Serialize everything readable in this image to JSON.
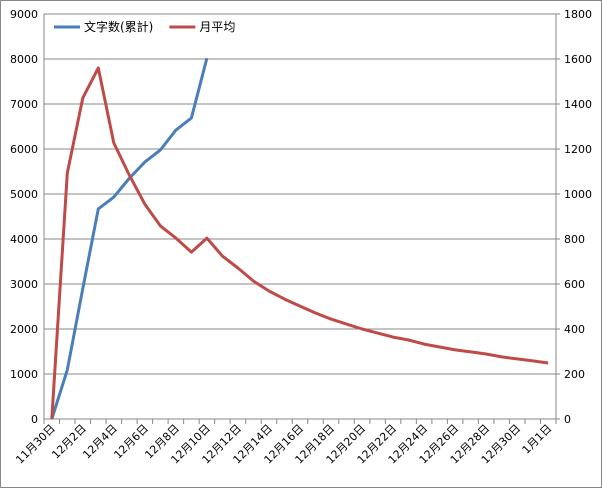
{
  "chart_data": {
    "type": "line",
    "categories": [
      "11月30日",
      null,
      "12月2日",
      null,
      "12月4日",
      null,
      "12月6日",
      null,
      "12月8日",
      null,
      "12月10日",
      null,
      "12月12日",
      null,
      "12月14日",
      null,
      "12月16日",
      null,
      "12月18日",
      null,
      "12月20日",
      null,
      "12月22日",
      null,
      "12月24日",
      null,
      "12月26日",
      null,
      "12月28日",
      null,
      "12月30日",
      null,
      "1月1日"
    ],
    "series": [
      {
        "name": "文字数(累計)",
        "color": "#4a7ebb",
        "axis": "y",
        "values": [
          0,
          1090,
          2900,
          4670,
          4930,
          5350,
          5710,
          5980,
          6420,
          6690,
          8020,
          null,
          null,
          null,
          null,
          null,
          null,
          null,
          null,
          null,
          null,
          null,
          null,
          null,
          null,
          null,
          null,
          null,
          null,
          null,
          null,
          null,
          null
        ]
      },
      {
        "name": "月平均",
        "color": "#be4b48",
        "axis": "y2",
        "values": [
          0,
          1093,
          1427,
          1560,
          1227,
          1084,
          955,
          858,
          804,
          742,
          804,
          724,
          671,
          613,
          569,
          533,
          502,
          471,
          444,
          422,
          400,
          382,
          364,
          351,
          333,
          320,
          307,
          298,
          289,
          276,
          267,
          258,
          249
        ]
      }
    ],
    "ylim": [
      0,
      9000
    ],
    "yticks": [
      0,
      1000,
      2000,
      3000,
      4000,
      5000,
      6000,
      7000,
      8000,
      9000
    ],
    "y2lim": [
      0,
      1800
    ],
    "y2ticks": [
      0,
      200,
      400,
      600,
      800,
      1000,
      1200,
      1400,
      1600,
      1800
    ],
    "grid": true,
    "legend": "top-left"
  }
}
